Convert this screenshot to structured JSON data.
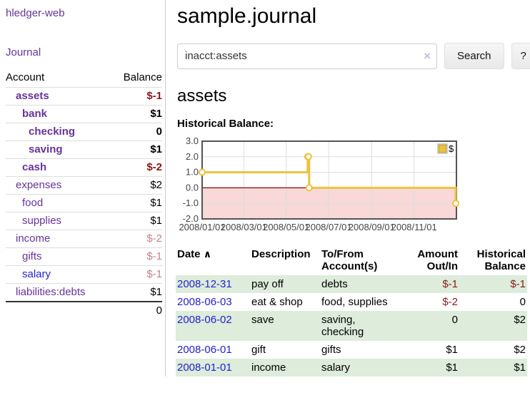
{
  "sidebar": {
    "brand": "hledger-web",
    "journal_link": "Journal",
    "accounts_table": {
      "account_header": "Account",
      "balance_header": "Balance",
      "rows": [
        {
          "name": "assets",
          "balance": "$-1"
        },
        {
          "name": "bank",
          "balance": "$1"
        },
        {
          "name": "checking",
          "balance": "0"
        },
        {
          "name": "saving",
          "balance": "$1"
        },
        {
          "name": "cash",
          "balance": "$-2"
        },
        {
          "name": "expenses",
          "balance": "$2"
        },
        {
          "name": "food",
          "balance": "$1"
        },
        {
          "name": "supplies",
          "balance": "$1"
        },
        {
          "name": "income",
          "balance": "$-2"
        },
        {
          "name": "gifts",
          "balance": "$-1"
        },
        {
          "name": "salary",
          "balance": "$-1"
        },
        {
          "name": "liabilities:debts",
          "balance": "$1"
        }
      ],
      "total": "0"
    }
  },
  "header": {
    "title": "sample.journal"
  },
  "search": {
    "value": "inacct:assets",
    "clear_icon": "×",
    "button_label": "Search",
    "help_label": "?"
  },
  "account_page": {
    "title": "assets",
    "chart_label": "Historical Balance:"
  },
  "chart_data": {
    "type": "line",
    "title": "Historical Balance",
    "steps": true,
    "series": [
      {
        "name": "$",
        "color": "#edc240",
        "points": [
          {
            "date": "2008-01-01",
            "value": 1
          },
          {
            "date": "2008-06-01",
            "value": 2
          },
          {
            "date": "2008-06-02",
            "value": 2
          },
          {
            "date": "2008-06-03",
            "value": 0
          },
          {
            "date": "2008-12-31",
            "value": -1
          }
        ]
      }
    ],
    "x_range": [
      "2008-01-01",
      "2009-01-01"
    ],
    "x_ticks": [
      "2008/01/01",
      "2008/03/01",
      "2008/05/01",
      "2008/07/01",
      "2008/09/01",
      "2008/11/01"
    ],
    "y_ticks": [
      3.0,
      2.0,
      1.0,
      0.0,
      -1.0,
      -2.0
    ],
    "ylim": [
      -2,
      3
    ],
    "legend": "$",
    "legend_position": "top-right",
    "grid": true,
    "negative_fill": "#f9d8d8",
    "zero_line_color": "#8b0000",
    "border_color": "#545454",
    "grid_color": "#dddddd"
  },
  "register_table": {
    "headers": {
      "date": "Date",
      "sort_icon": "∧",
      "description": "Description",
      "accounts": "To/From Account(s)",
      "amount": "Amount Out/In",
      "balance": "Historical Balance"
    },
    "rows": [
      {
        "date": "2008-12-31",
        "description": "pay off",
        "accounts": "debts",
        "amount": "$-1",
        "balance": "$-1"
      },
      {
        "date": "2008-06-03",
        "description": "eat & shop",
        "accounts": "food, supplies",
        "amount": "$-2",
        "balance": "0"
      },
      {
        "date": "2008-06-02",
        "description": "save",
        "accounts": "saving, checking",
        "amount": "0",
        "balance": "$2"
      },
      {
        "date": "2008-06-01",
        "description": "gift",
        "accounts": "gifts",
        "amount": "$1",
        "balance": "$2"
      },
      {
        "date": "2008-01-01",
        "description": "income",
        "accounts": "salary",
        "amount": "$1",
        "balance": "$1"
      }
    ]
  }
}
